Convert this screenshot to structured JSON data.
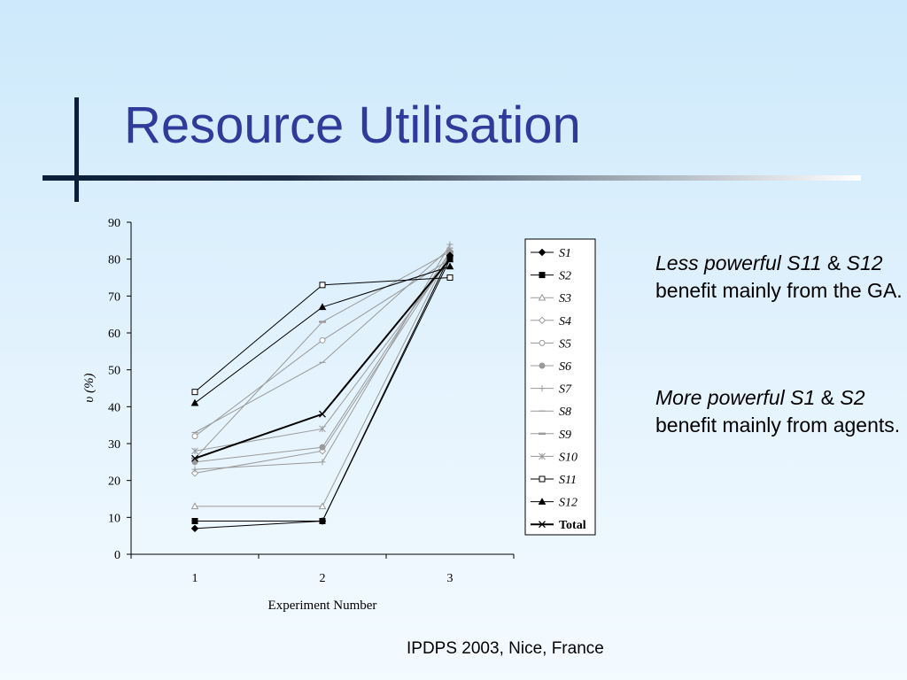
{
  "slide": {
    "title": "Resource Utilisation",
    "footer": "IPDPS 2003, Nice, France",
    "notes": [
      [
        {
          "text": "Less powerful S11",
          "italic": true
        },
        {
          "text": " & ",
          "italic": false
        },
        {
          "text": "S12",
          "italic": true
        },
        {
          "text": " benefit mainly from the GA.",
          "italic": false
        }
      ],
      [
        {
          "text": "More powerful S1",
          "italic": true
        },
        {
          "text": " & ",
          "italic": false
        },
        {
          "text": "S2",
          "italic": true
        },
        {
          "text": " benefit mainly from agents.",
          "italic": false
        }
      ]
    ]
  },
  "chart_data": {
    "type": "line",
    "xlabel": "Experiment Number",
    "ylabel": "υ (%)",
    "x": [
      1,
      2,
      3
    ],
    "ylim": [
      0,
      90
    ],
    "yticks": [
      0,
      10,
      20,
      30,
      40,
      50,
      60,
      70,
      80,
      90
    ],
    "grid": false,
    "legend_position": "right",
    "series": [
      {
        "name": "S1",
        "values": [
          7,
          9,
          81
        ],
        "color": "#000000",
        "marker": "diamond-filled",
        "width": 1,
        "bold": false
      },
      {
        "name": "S2",
        "values": [
          9,
          9,
          80
        ],
        "color": "#000000",
        "marker": "square-filled",
        "width": 1,
        "bold": false
      },
      {
        "name": "S3",
        "values": [
          13,
          13,
          82
        ],
        "color": "#9a9a9a",
        "marker": "triangle-open",
        "width": 1,
        "bold": false
      },
      {
        "name": "S4",
        "values": [
          22,
          28,
          81
        ],
        "color": "#9a9a9a",
        "marker": "diamond-open",
        "width": 1,
        "bold": false
      },
      {
        "name": "S5",
        "values": [
          32,
          58,
          80
        ],
        "color": "#9a9a9a",
        "marker": "circle-open",
        "width": 1,
        "bold": false
      },
      {
        "name": "S6",
        "values": [
          25,
          29,
          82
        ],
        "color": "#9a9a9a",
        "marker": "circle-filled",
        "width": 1,
        "bold": false
      },
      {
        "name": "S7",
        "values": [
          23,
          25,
          84
        ],
        "color": "#9a9a9a",
        "marker": "plus",
        "width": 1,
        "bold": false
      },
      {
        "name": "S8",
        "values": [
          33,
          52,
          83
        ],
        "color": "#9a9a9a",
        "marker": "dash",
        "width": 1,
        "bold": false
      },
      {
        "name": "S9",
        "values": [
          26,
          63,
          82
        ],
        "color": "#9a9a9a",
        "marker": "dash-thick",
        "width": 1,
        "bold": false
      },
      {
        "name": "S10",
        "values": [
          28,
          34,
          80
        ],
        "color": "#9a9a9a",
        "marker": "star",
        "width": 1,
        "bold": false
      },
      {
        "name": "S11",
        "values": [
          44,
          73,
          75
        ],
        "color": "#000000",
        "marker": "square-open",
        "width": 1,
        "bold": false
      },
      {
        "name": "S12",
        "values": [
          41,
          67,
          78
        ],
        "color": "#000000",
        "marker": "triangle-filled",
        "width": 1,
        "bold": false
      },
      {
        "name": "Total",
        "values": [
          26,
          38,
          80
        ],
        "color": "#000000",
        "marker": "x",
        "width": 2,
        "bold": true
      }
    ]
  }
}
